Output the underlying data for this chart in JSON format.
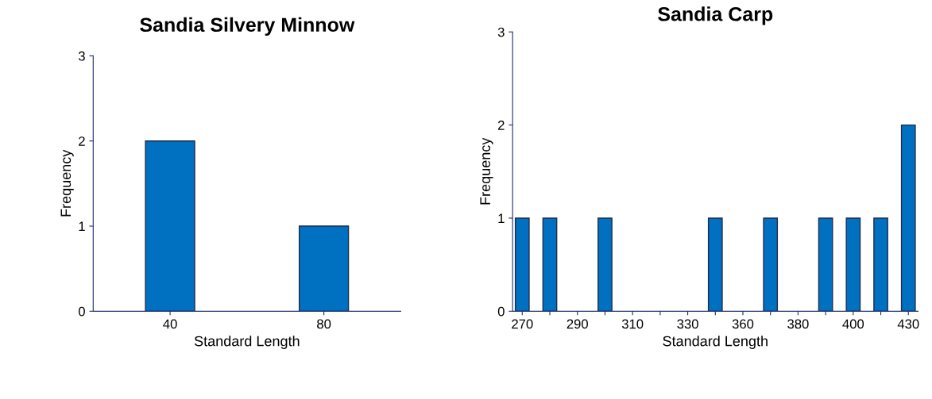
{
  "chart_data": [
    {
      "type": "bar",
      "title": "Sandia Silvery Minnow",
      "xlabel": "Standard Length",
      "ylabel": "Frequency",
      "categories": [
        "40",
        "80"
      ],
      "values": [
        2,
        1
      ],
      "color": "#0070c0",
      "ylim": [
        0,
        3
      ],
      "yticks": [
        0,
        1,
        2,
        3
      ],
      "grid": false,
      "legend": false
    },
    {
      "type": "bar",
      "title": "Sandia Carp",
      "xlabel": "Standard Length",
      "ylabel": "Frequency",
      "categories": [
        "270",
        null,
        "290",
        null,
        "310",
        null,
        "330",
        null,
        "360",
        null,
        "380",
        null,
        "400",
        null,
        "430"
      ],
      "values": [
        1,
        1,
        0,
        1,
        0,
        0,
        0,
        1,
        0,
        1,
        0,
        1,
        1,
        1,
        2
      ],
      "color": "#0070c0",
      "ylim": [
        0,
        3
      ],
      "yticks": [
        0,
        1,
        2,
        3
      ],
      "grid": false,
      "legend": false
    }
  ]
}
